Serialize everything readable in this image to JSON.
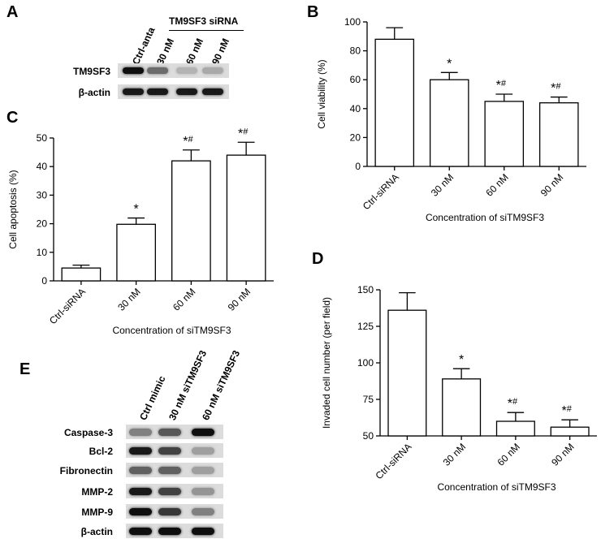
{
  "panels": {
    "a": {
      "letter": "A",
      "group_title": "TM9SF3 siRNA",
      "lanes": [
        "Ctrl-anta",
        "30 nM",
        "60 nM",
        "90 nM"
      ],
      "rows": [
        {
          "label": "TM9SF3",
          "intensity": [
            1.0,
            0.55,
            0.2,
            0.25
          ]
        },
        {
          "label": "β-actin",
          "intensity": [
            0.95,
            0.95,
            0.95,
            0.95
          ]
        }
      ]
    },
    "b": {
      "letter": "B"
    },
    "c": {
      "letter": "C"
    },
    "d": {
      "letter": "D"
    },
    "e": {
      "letter": "E",
      "lanes": [
        "Ctrl mimic",
        "30 nM siTM9SF3",
        "60 nM siTM9SF3"
      ],
      "rows": [
        {
          "label": "Caspase-3",
          "intensity": [
            0.45,
            0.65,
            1.0
          ]
        },
        {
          "label": "Bcl-2",
          "intensity": [
            0.95,
            0.75,
            0.3
          ]
        },
        {
          "label": "Fibronectin",
          "intensity": [
            0.6,
            0.6,
            0.3
          ]
        },
        {
          "label": "MMP-2",
          "intensity": [
            0.95,
            0.75,
            0.35
          ]
        },
        {
          "label": "MMP-9",
          "intensity": [
            1.0,
            0.8,
            0.45
          ]
        },
        {
          "label": "β-actin",
          "intensity": [
            1.0,
            1.0,
            1.0
          ]
        }
      ]
    }
  },
  "chart_data": [
    {
      "id": "B",
      "type": "bar",
      "categories": [
        "Ctrl-siRNA",
        "30 nM",
        "60 nM",
        "90 nM"
      ],
      "values": [
        88,
        60,
        45,
        44
      ],
      "errors": [
        8,
        5,
        5,
        4
      ],
      "annotations": [
        "",
        "*",
        "*#",
        "*#"
      ],
      "xlabel": "Concentration of siTM9SF3",
      "ylabel": "Cell viability (%)",
      "ylim": [
        0,
        100
      ],
      "yticks": [
        0,
        20,
        40,
        60,
        80,
        100
      ]
    },
    {
      "id": "C",
      "type": "bar",
      "categories": [
        "Ctrl-siRNA",
        "30 nM",
        "60 nM",
        "90 nM"
      ],
      "values": [
        4.5,
        19.8,
        42.0,
        44.0
      ],
      "errors": [
        1.0,
        2.2,
        3.8,
        4.5
      ],
      "annotations": [
        "",
        "*",
        "*#",
        "*#"
      ],
      "xlabel": "Concentration of siTM9SF3",
      "ylabel": "Cell apoptosis (%)",
      "ylim": [
        0,
        50
      ],
      "yticks": [
        0,
        10,
        20,
        30,
        40,
        50
      ]
    },
    {
      "id": "D",
      "type": "bar",
      "categories": [
        "Ctrl-siRNA",
        "30 nM",
        "60 nM",
        "90 nM"
      ],
      "values": [
        136,
        89,
        60,
        56
      ],
      "errors": [
        12,
        7,
        6,
        5
      ],
      "annotations": [
        "",
        "*",
        "*#",
        "*#"
      ],
      "xlabel": "Concentration of siTM9SF3",
      "ylabel": "Invaded cell number (per field)",
      "ylim": [
        50,
        150
      ],
      "yticks": [
        50,
        75,
        100,
        125,
        150
      ]
    }
  ]
}
